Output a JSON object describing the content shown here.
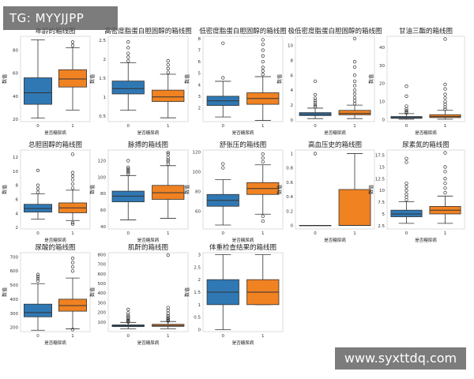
{
  "watermarks": {
    "top_left": "TG: MYYJJPP",
    "bottom_right": "www.syxttdq.com"
  },
  "colors": {
    "group0": "#2f78b4",
    "group1": "#f08222",
    "line": "#333333",
    "frame": "#d6d6d6"
  },
  "chart_data": [
    {
      "type": "box",
      "title": "年龄的箱线图",
      "ylabel": "数值",
      "xlabel": "是否糖尿病",
      "categories": [
        "0",
        "1"
      ],
      "ylim": [
        18,
        92
      ],
      "yticks": [
        20,
        40,
        60,
        80
      ],
      "boxes": [
        {
          "whislo": 21,
          "q1": 33,
          "med": 43,
          "q3": 56,
          "whishi": 89,
          "fliers": []
        },
        {
          "whislo": 28,
          "q1": 48,
          "med": 55,
          "q3": 63,
          "whishi": 82,
          "fliers": [
            84,
            87
          ]
        }
      ]
    },
    {
      "type": "box",
      "title": "高密度脂蛋白胆固醇的箱线图",
      "ylabel": "数值",
      "xlabel": "是否糖尿病",
      "categories": [
        "0",
        "1"
      ],
      "ylim": [
        0.35,
        2.6
      ],
      "yticks": [
        0.5,
        1.0,
        1.5,
        2.0,
        2.5
      ],
      "boxes": [
        {
          "whislo": 0.65,
          "q1": 1.08,
          "med": 1.22,
          "q3": 1.42,
          "whishi": 1.9,
          "fliers": [
            1.95,
            2.05,
            2.15,
            2.3,
            2.45
          ]
        },
        {
          "whislo": 0.45,
          "q1": 0.88,
          "med": 1.0,
          "q3": 1.18,
          "whishi": 1.6,
          "fliers": [
            1.65,
            1.75,
            1.85,
            1.95
          ]
        }
      ]
    },
    {
      "type": "box",
      "title": "低密度脂蛋白胆固醇的箱线图",
      "ylabel": "数值",
      "xlabel": "是否糖尿病",
      "categories": [
        "0",
        "1"
      ],
      "ylim": [
        0.8,
        8.2
      ],
      "yticks": [
        2,
        3,
        4,
        5,
        6,
        7,
        8
      ],
      "boxes": [
        {
          "whislo": 1.2,
          "q1": 2.2,
          "med": 2.6,
          "q3": 3.0,
          "whishi": 4.3,
          "fliers": [
            4.6,
            7.6
          ]
        },
        {
          "whislo": 0.9,
          "q1": 2.3,
          "med": 2.8,
          "q3": 3.3,
          "whishi": 4.7,
          "fliers": [
            4.9,
            5.2,
            5.5,
            6.0,
            6.5,
            7.0,
            7.5,
            7.9
          ]
        }
      ]
    },
    {
      "type": "box",
      "title": "极低密度脂蛋白胆固醇的箱线图",
      "ylabel": "数值",
      "xlabel": "是否糖尿病",
      "categories": [
        "0",
        "1"
      ],
      "ylim": [
        -0.2,
        11.2
      ],
      "yticks": [
        0,
        2,
        4,
        6,
        8,
        10
      ],
      "boxes": [
        {
          "whislo": 0.2,
          "q1": 0.6,
          "med": 0.8,
          "q3": 1.0,
          "whishi": 1.6,
          "fliers": [
            1.8,
            2.0,
            2.3,
            2.6,
            2.9,
            3.4,
            5.2
          ]
        },
        {
          "whislo": 0.2,
          "q1": 0.7,
          "med": 0.9,
          "q3": 1.3,
          "whishi": 2.0,
          "fliers": [
            2.2,
            2.6,
            3.0,
            3.5,
            4.0,
            4.6,
            5.2,
            6.0,
            7.1,
            7.8,
            10.9
          ]
        }
      ]
    },
    {
      "type": "box",
      "title": "甘油三酯的箱线图",
      "ylabel": "数值",
      "xlabel": "是否糖尿病",
      "categories": [
        "0",
        "1"
      ],
      "ylim": [
        -1,
        46
      ],
      "yticks": [
        0,
        10,
        20,
        30,
        40
      ],
      "boxes": [
        {
          "whislo": 0.3,
          "q1": 0.8,
          "med": 1.2,
          "q3": 1.8,
          "whishi": 3.4,
          "fliers": [
            3.8,
            4.3,
            5.0,
            6.0,
            7.5,
            13.0,
            18.5
          ]
        },
        {
          "whislo": 0.3,
          "q1": 1.2,
          "med": 1.8,
          "q3": 2.8,
          "whishi": 5.2,
          "fliers": [
            5.8,
            7.0,
            8.5,
            10.0,
            12.0,
            14.0,
            17.0,
            19.5,
            44.5
          ]
        }
      ]
    },
    {
      "type": "box",
      "title": "总胆固醇的箱线图",
      "ylabel": "数值",
      "xlabel": "是否糖尿病",
      "categories": [
        "0",
        "1"
      ],
      "ylim": [
        1.8,
        13
      ],
      "yticks": [
        2,
        4,
        6,
        8,
        10,
        12
      ],
      "boxes": [
        {
          "whislo": 3.2,
          "q1": 4.2,
          "med": 4.7,
          "q3": 5.3,
          "whishi": 6.8,
          "fliers": [
            7.0,
            7.5,
            8.0,
            10.1
          ]
        },
        {
          "whislo": 3.0,
          "q1": 4.1,
          "med": 4.8,
          "q3": 5.5,
          "whishi": 7.3,
          "fliers": [
            2.5,
            2.7,
            7.6,
            8.2,
            8.8,
            9.3,
            9.8,
            12.4
          ]
        }
      ]
    },
    {
      "type": "box",
      "title": "脉搏的箱线图",
      "ylabel": "数值",
      "xlabel": "是否糖尿病",
      "categories": [
        "0",
        "1"
      ],
      "ylim": [
        37,
        133
      ],
      "yticks": [
        40,
        60,
        80,
        100,
        120
      ],
      "boxes": [
        {
          "whislo": 48,
          "q1": 70,
          "med": 77,
          "q3": 83,
          "whishi": 102,
          "fliers": [
            104,
            106,
            108,
            110,
            112,
            120
          ]
        },
        {
          "whislo": 50,
          "q1": 73,
          "med": 81,
          "q3": 90,
          "whishi": 114,
          "fliers": [
            116,
            119,
            121,
            124,
            128,
            130
          ]
        }
      ]
    },
    {
      "type": "box",
      "title": "舒张压的箱线图",
      "ylabel": "数值",
      "xlabel": "是否糖尿病",
      "categories": [
        "0",
        "1"
      ],
      "ylim": [
        42,
        122
      ],
      "yticks": [
        60,
        80,
        100,
        120
      ],
      "boxes": [
        {
          "whislo": 46,
          "q1": 65,
          "med": 71,
          "q3": 77,
          "whishi": 92,
          "fliers": [
            104,
            108
          ]
        },
        {
          "whislo": 57,
          "q1": 77,
          "med": 83,
          "q3": 89,
          "whishi": 107,
          "fliers": [
            50,
            55,
            110,
            114,
            118
          ]
        }
      ]
    },
    {
      "type": "box",
      "title": "高血压史的箱线图",
      "ylabel": "数值",
      "xlabel": "是否糖尿病",
      "categories": [
        "0",
        "1"
      ],
      "ylim": [
        -0.05,
        1.05
      ],
      "yticks": [
        0.0,
        0.2,
        0.4,
        0.6,
        0.8,
        1.0
      ],
      "boxes": [
        {
          "whislo": 0,
          "q1": 0,
          "med": 0,
          "q3": 0,
          "whishi": 0,
          "fliers": [
            1.0
          ]
        },
        {
          "whislo": 0,
          "q1": 0,
          "med": 0,
          "q3": 0.5,
          "whishi": 1.0,
          "fliers": []
        }
      ]
    },
    {
      "type": "box",
      "title": "尿素氮的箱线图",
      "ylabel": "数值",
      "xlabel": "是否糖尿病",
      "categories": [
        "0",
        "1"
      ],
      "ylim": [
        1.8,
        18.6
      ],
      "yticks": [
        2.5,
        5.0,
        7.5,
        10.0,
        12.5,
        15.0,
        17.5
      ],
      "boxes": [
        {
          "whislo": 3.0,
          "q1": 4.4,
          "med": 5.0,
          "q3": 5.8,
          "whishi": 7.6,
          "fliers": [
            8.0,
            8.6,
            9.2,
            10.0,
            10.8,
            11.5,
            16.0,
            16.8
          ]
        },
        {
          "whislo": 3.0,
          "q1": 5.0,
          "med": 5.8,
          "q3": 6.6,
          "whishi": 8.8,
          "fliers": [
            9.5,
            10.5,
            11.5,
            12.5,
            14.0,
            15.0,
            18.0
          ]
        }
      ]
    },
    {
      "type": "box",
      "title": "尿酸的箱线图",
      "ylabel": "数值",
      "xlabel": "是否糖尿病",
      "categories": [
        "0",
        "1"
      ],
      "ylim": [
        170,
        730
      ],
      "yticks": [
        200,
        300,
        400,
        500,
        600,
        700
      ],
      "boxes": [
        {
          "whislo": 180,
          "q1": 275,
          "med": 305,
          "q3": 365,
          "whishi": 510,
          "fliers": [
            530,
            545,
            560,
            575
          ]
        },
        {
          "whislo": 190,
          "q1": 315,
          "med": 355,
          "q3": 400,
          "whishi": 550,
          "fliers": [
            185,
            600,
            630,
            660,
            690
          ]
        }
      ]
    },
    {
      "type": "box",
      "title": "肌酐的箱线图",
      "ylabel": "数值",
      "xlabel": "是否糖尿病",
      "categories": [
        "0",
        "1"
      ],
      "ylim": [
        0,
        820
      ],
      "yticks": [
        100,
        200,
        300,
        400,
        500,
        600,
        700,
        800
      ],
      "boxes": [
        {
          "whislo": 30,
          "q1": 52,
          "med": 60,
          "q3": 70,
          "whishi": 96,
          "fliers": [
            100,
            105,
            115,
            125,
            140,
            155,
            170,
            195,
            230
          ]
        },
        {
          "whislo": 30,
          "q1": 55,
          "med": 63,
          "q3": 76,
          "whishi": 105,
          "fliers": [
            110,
            115,
            125,
            135,
            150,
            165,
            190,
            220,
            250,
            795
          ]
        }
      ]
    },
    {
      "type": "box",
      "title": "体重检查结果的箱线图",
      "ylabel": "数值",
      "xlabel": "是否糖尿病",
      "categories": [
        "0",
        "1"
      ],
      "ylim": [
        -0.08,
        3.08
      ],
      "yticks": [
        0.0,
        0.5,
        1.0,
        1.5,
        2.0,
        2.5,
        3.0
      ],
      "boxes": [
        {
          "whislo": 0,
          "q1": 1,
          "med": 1.5,
          "q3": 2,
          "whishi": 3,
          "fliers": []
        },
        {
          "whislo": 1,
          "q1": 1,
          "med": 1.5,
          "q3": 2,
          "whishi": 3,
          "fliers": []
        }
      ]
    }
  ]
}
